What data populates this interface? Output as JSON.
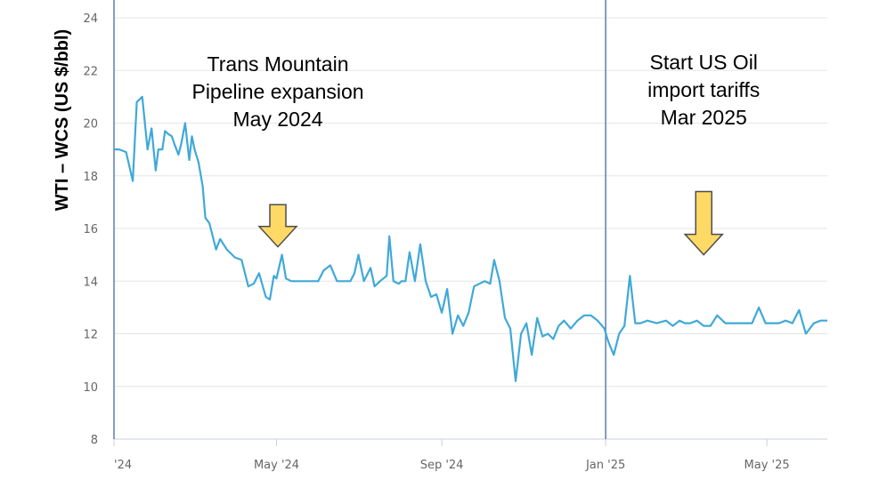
{
  "chart_data": {
    "type": "line",
    "title": "",
    "xlabel": "",
    "ylabel": "WTI – WCS (US $/bbl)",
    "ylim": [
      8,
      24
    ],
    "y_ticks": [
      8,
      10,
      12,
      14,
      16,
      18,
      20,
      22,
      24
    ],
    "x_ticks": [
      "'24",
      "May '24",
      "Sep '24",
      "Jan '25",
      "May '25"
    ],
    "x_tick_dates": [
      "2024-01-01",
      "2024-05-01",
      "2024-09-01",
      "2025-01-01",
      "2025-05-01"
    ],
    "xlim": [
      "2024-01-01",
      "2025-06-15"
    ],
    "grid": true,
    "line_color": "#3fa9d8",
    "marker_line_color": "#5b7fae",
    "series": [
      {
        "x": [
          "2024-01-01",
          "2024-01-05",
          "2024-01-10",
          "2024-01-15",
          "2024-01-18",
          "2024-01-22",
          "2024-01-26",
          "2024-01-29",
          "2024-02-01",
          "2024-02-03",
          "2024-02-06",
          "2024-02-08",
          "2024-02-10",
          "2024-02-13",
          "2024-02-15",
          "2024-02-18",
          "2024-02-20",
          "2024-02-23",
          "2024-02-26",
          "2024-02-28",
          "2024-03-01",
          "2024-03-04",
          "2024-03-07",
          "2024-03-09",
          "2024-03-12",
          "2024-03-14",
          "2024-03-17",
          "2024-03-20",
          "2024-03-25",
          "2024-03-31",
          "2024-04-05",
          "2024-04-10",
          "2024-04-14",
          "2024-04-18",
          "2024-04-23",
          "2024-04-26",
          "2024-04-29",
          "2024-05-01",
          "2024-05-05",
          "2024-05-08",
          "2024-05-12",
          "2024-05-15",
          "2024-05-20",
          "2024-05-25",
          "2024-06-01",
          "2024-06-05",
          "2024-06-10",
          "2024-06-15",
          "2024-06-20",
          "2024-06-25",
          "2024-06-28",
          "2024-07-01",
          "2024-07-05",
          "2024-07-10",
          "2024-07-13",
          "2024-07-17",
          "2024-07-22",
          "2024-07-24",
          "2024-07-27",
          "2024-07-31",
          "2024-08-02",
          "2024-08-05",
          "2024-08-08",
          "2024-08-12",
          "2024-08-16",
          "2024-08-20",
          "2024-08-24",
          "2024-08-28",
          "2024-09-01",
          "2024-09-05",
          "2024-09-09",
          "2024-09-13",
          "2024-09-17",
          "2024-09-21",
          "2024-09-25",
          "2024-09-29",
          "2024-10-03",
          "2024-10-07",
          "2024-10-10",
          "2024-10-14",
          "2024-10-18",
          "2024-10-22",
          "2024-10-26",
          "2024-10-30",
          "2024-11-03",
          "2024-11-07",
          "2024-11-11",
          "2024-11-15",
          "2024-11-19",
          "2024-11-23",
          "2024-11-27",
          "2024-12-01",
          "2024-12-06",
          "2024-12-11",
          "2024-12-16",
          "2024-12-21",
          "2024-12-26",
          "2024-12-31",
          "2025-01-03",
          "2025-01-07",
          "2025-01-11",
          "2025-01-15",
          "2025-01-19",
          "2025-01-23",
          "2025-01-27",
          "2025-02-01",
          "2025-02-08",
          "2025-02-15",
          "2025-02-20",
          "2025-02-25",
          "2025-03-01",
          "2025-03-05",
          "2025-03-10",
          "2025-03-15",
          "2025-03-20",
          "2025-03-25",
          "2025-03-31",
          "2025-04-05",
          "2025-04-10",
          "2025-04-15",
          "2025-04-20",
          "2025-04-25",
          "2025-04-30",
          "2025-05-05",
          "2025-05-10",
          "2025-05-15",
          "2025-05-20",
          "2025-05-25",
          "2025-05-30",
          "2025-06-05",
          "2025-06-10",
          "2025-06-15"
        ],
        "values": [
          19.0,
          19.0,
          18.9,
          17.8,
          20.8,
          21.0,
          19.0,
          19.8,
          18.2,
          19.0,
          19.0,
          19.7,
          19.6,
          19.5,
          19.2,
          18.8,
          19.2,
          20.0,
          18.6,
          19.5,
          19.0,
          18.5,
          17.6,
          16.4,
          16.2,
          15.8,
          15.2,
          15.6,
          15.2,
          14.9,
          14.8,
          13.8,
          13.9,
          14.3,
          13.4,
          13.3,
          14.2,
          14.1,
          15.0,
          14.1,
          14.0,
          14.0,
          14.0,
          14.0,
          14.0,
          14.4,
          14.6,
          14.0,
          14.0,
          14.0,
          14.3,
          15.0,
          14.0,
          14.5,
          13.8,
          14.0,
          14.2,
          15.7,
          14.0,
          13.9,
          14.0,
          14.0,
          15.1,
          14.0,
          15.4,
          14.0,
          13.4,
          13.5,
          12.8,
          13.7,
          12.0,
          12.7,
          12.3,
          12.8,
          13.8,
          13.9,
          14.0,
          13.9,
          14.8,
          14.0,
          12.6,
          12.2,
          10.2,
          12.0,
          12.4,
          11.2,
          12.6,
          11.9,
          12.0,
          11.8,
          12.3,
          12.5,
          12.2,
          12.5,
          12.7,
          12.7,
          12.5,
          12.2,
          11.7,
          11.2,
          12.0,
          12.3,
          14.2,
          12.4,
          12.4,
          12.5,
          12.4,
          12.5,
          12.3,
          12.5,
          12.4,
          12.4,
          12.5,
          12.3,
          12.3,
          12.7,
          12.4,
          12.4,
          12.4,
          12.4,
          12.4,
          13.0,
          12.4,
          12.4,
          12.4,
          12.5,
          12.4,
          12.9,
          12.0,
          12.4,
          12.5,
          12.5
        ]
      }
    ],
    "vertical_markers": [
      "2024-01-01",
      "2025-01-01"
    ],
    "annotations": [
      {
        "lines": [
          "Trans Mountain",
          "Pipeline expansion",
          "May 2024"
        ],
        "arrow_date": "2024-05-02",
        "arrow_top": 16.9,
        "arrow_tip": 15.3
      },
      {
        "lines": [
          "Start US Oil",
          "import tariffs",
          "Mar 2025"
        ],
        "arrow_date": "2025-03-15",
        "arrow_top": 17.4,
        "arrow_tip": 15.0
      }
    ],
    "arrow_color": "#ffd966",
    "arrow_stroke": "#4d4d4d"
  }
}
